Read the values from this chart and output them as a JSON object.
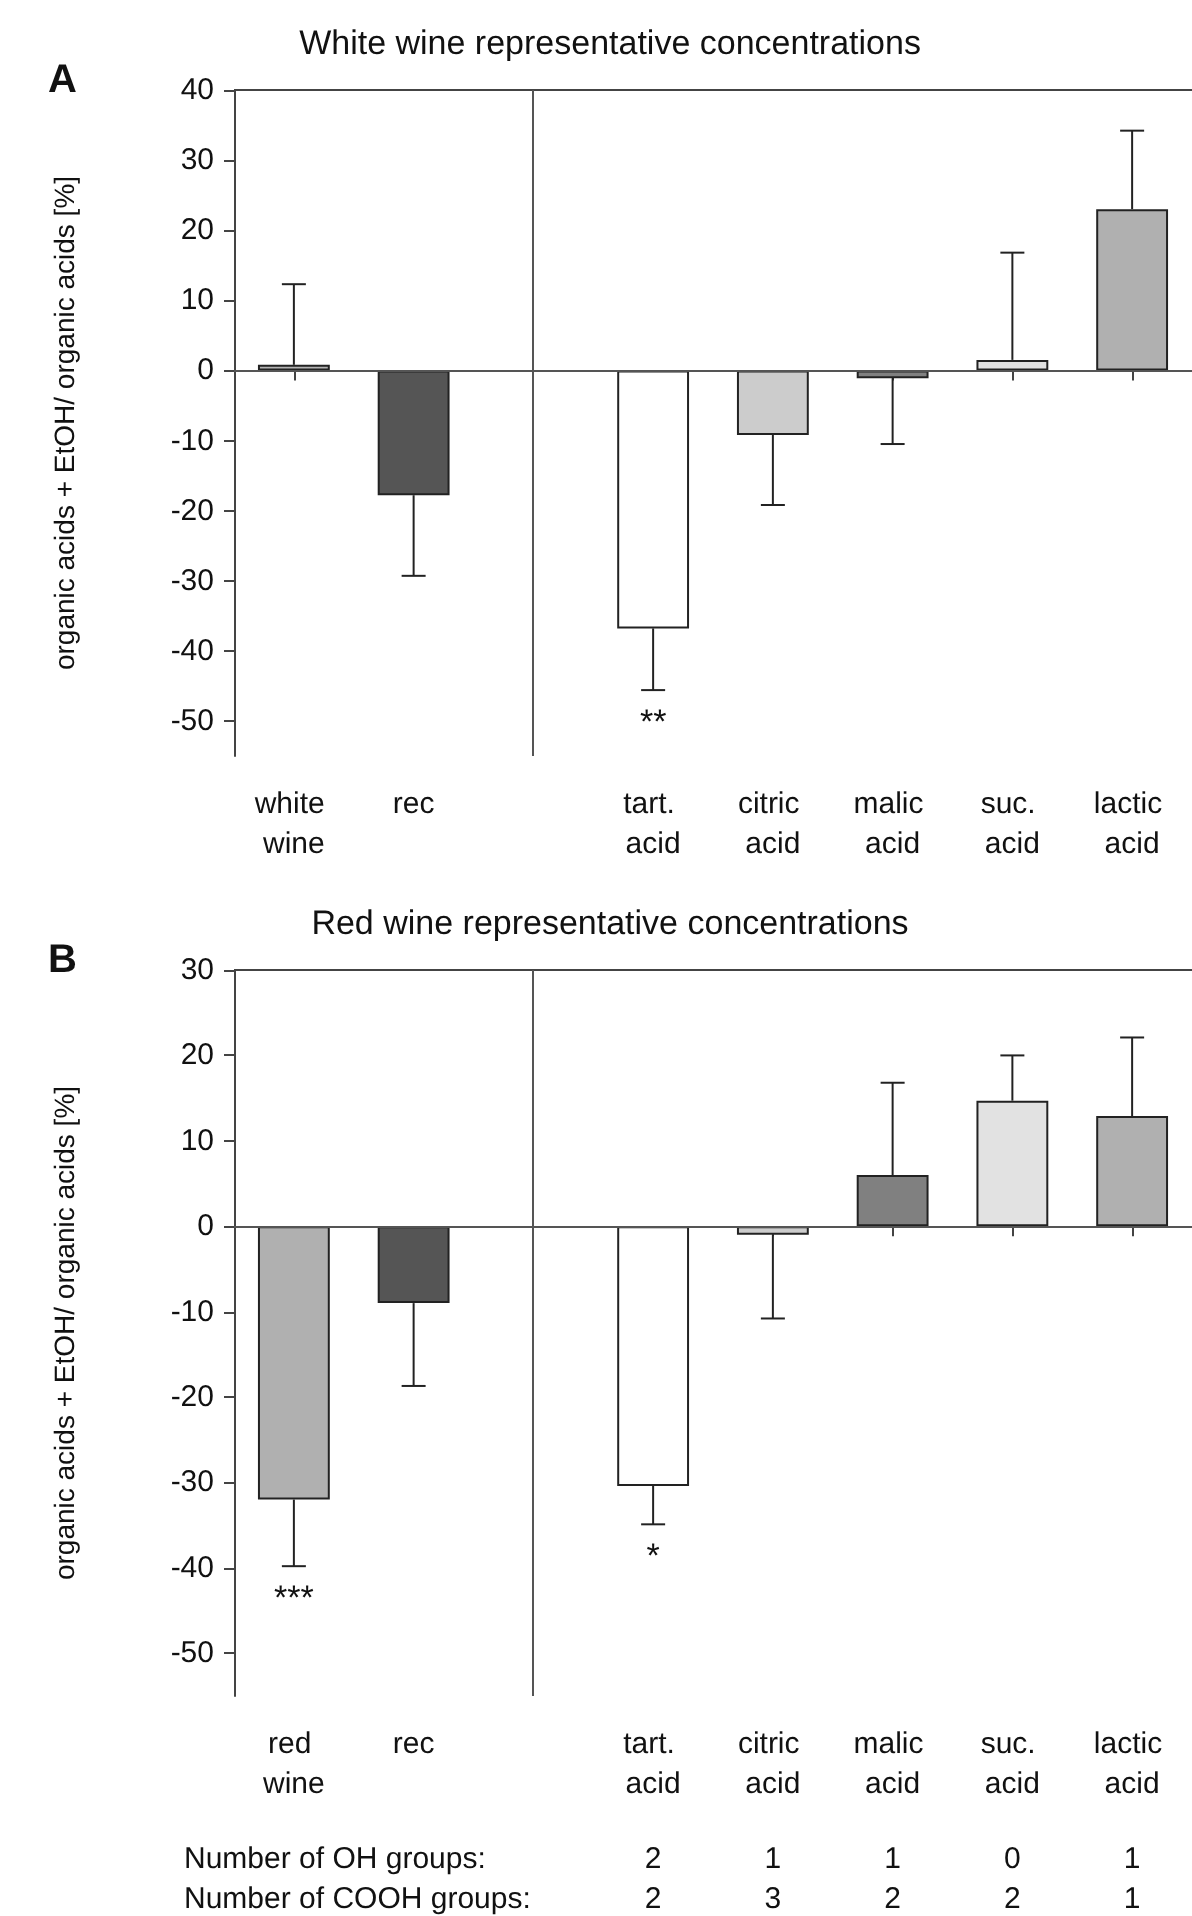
{
  "chart_data": [
    {
      "type": "bar",
      "title": "White wine representative concentrations",
      "ylabel": "organic acids + EtOH/ organic acids [%]",
      "categories": [
        "white wine",
        "rec",
        null,
        "tart. acid",
        "citric acid",
        "malic acid",
        "suc. acid",
        "lactic acid"
      ],
      "values": [
        0.8,
        -17.8,
        null,
        -36.8,
        -9.2,
        -1.1,
        1.5,
        23
      ],
      "colors": [
        "#b4b4b4",
        "#555555",
        "#ffffff",
        "#ffffff",
        "#cccccc",
        "#808080",
        "#e2e2e2",
        "#b0b0b0"
      ],
      "errors": [
        [
          0.8,
          12.3
        ],
        [
          -29.3,
          -17.8
        ],
        null,
        [
          -45.6,
          -36.8
        ],
        [
          -19.2,
          -9.2
        ],
        [
          -10.5,
          -1.1
        ],
        [
          1.5,
          16.8
        ],
        [
          23,
          34.2
        ]
      ],
      "ylim": [
        -55,
        40
      ],
      "yticks": [
        -50,
        -40,
        -30,
        -20,
        -10,
        0,
        10,
        20,
        30,
        40
      ],
      "ref_lines": [
        {
          "axis": "y",
          "value": 0
        },
        {
          "axis": "x",
          "value": null
        }
      ],
      "value_labels": [
        null,
        null,
        null,
        "**",
        null,
        null,
        null,
        null
      ],
      "annotations": [
        "A"
      ]
    },
    {
      "type": "bar",
      "title": "Red wine representative concentrations",
      "ylabel": "organic acids + EtOH/ organic acids [%]",
      "categories": [
        "red wine",
        "rec",
        null,
        "tart. acid",
        "citric acid",
        "malic acid",
        "suc. acid",
        "lactic acid"
      ],
      "values": [
        -32,
        -9,
        null,
        -30.4,
        -1,
        6,
        14.7,
        12.9
      ],
      "colors": [
        "#b0b0b0",
        "#555555",
        "#ffffff",
        "#ffffff",
        "#cccccc",
        "#808080",
        "#e2e2e2",
        "#b0b0b0"
      ],
      "errors": [
        [
          -39.8,
          -32
        ],
        [
          -18.7,
          -9
        ],
        null,
        [
          -34.9,
          -30.4
        ],
        [
          -10.8,
          -1
        ],
        [
          6,
          16.8
        ],
        [
          14.7,
          20
        ],
        [
          12.9,
          22.1
        ]
      ],
      "ylim": [
        -55,
        30
      ],
      "yticks": [
        -50,
        -40,
        -30,
        -20,
        -10,
        0,
        10,
        20,
        30
      ],
      "ref_lines": [
        {
          "axis": "y",
          "value": 0
        },
        {
          "axis": "x",
          "value": null
        }
      ],
      "value_labels": [
        "***",
        null,
        null,
        "*",
        null,
        null,
        null,
        null
      ],
      "annotations": [
        "B",
        "Number of OH groups:",
        "2",
        "1",
        "1",
        "0",
        "1",
        "Number of COOH groups:",
        "2",
        "3",
        "2",
        "2",
        "1"
      ]
    }
  ]
}
